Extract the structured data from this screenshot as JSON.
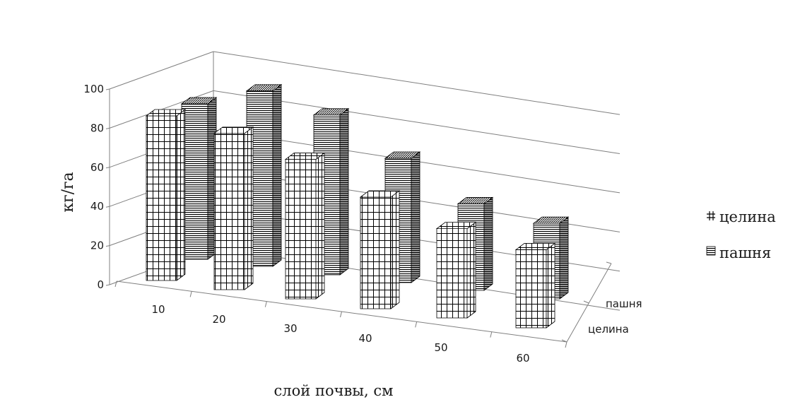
{
  "chart_data": {
    "type": "bar",
    "subtype": "3d-clustered",
    "title": "",
    "xlabel": "слой почвы, см",
    "ylabel": "кг/га",
    "categories": [
      "10",
      "20",
      "30",
      "40",
      "50",
      "60"
    ],
    "yticks": [
      "0",
      "20",
      "40",
      "60",
      "80",
      "100"
    ],
    "ylim": [
      0,
      100
    ],
    "grid": true,
    "legend_position": "right",
    "depth_labels": [
      "целина",
      "пашня"
    ],
    "series": [
      {
        "name": "целина",
        "values": [
          59,
          56,
          50,
          40,
          32,
          28
        ],
        "pattern": "grid"
      },
      {
        "name": "пашня",
        "values": [
          70,
          79,
          72,
          56,
          39,
          34
        ],
        "pattern": "horizontal-lines"
      }
    ],
    "colors": {
      "bar_fill": "#ffffff",
      "bar_line": "#000000",
      "axis": "#808080",
      "grid": "#7f7f7f"
    }
  }
}
